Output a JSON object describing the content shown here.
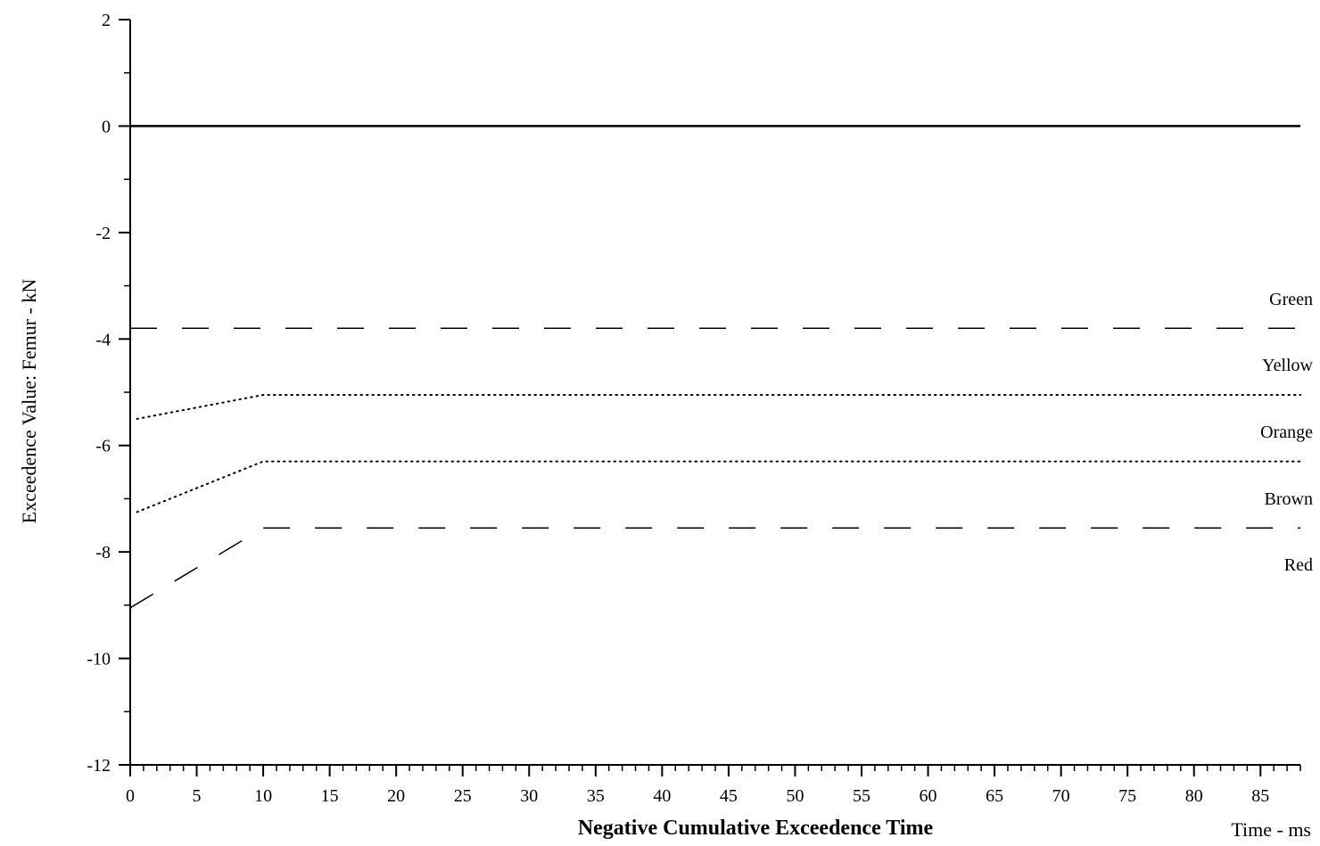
{
  "chart_data": {
    "type": "line",
    "title": "",
    "xlabel": "Negative Cumulative Exceedence Time",
    "xunit": "Time - ms",
    "ylabel": "Exceedence Value: Femur - kN",
    "xlim": [
      0,
      88
    ],
    "ylim": [
      -12,
      2
    ],
    "x_major_ticks": [
      0,
      5,
      10,
      15,
      20,
      25,
      30,
      35,
      40,
      45,
      50,
      55,
      60,
      65,
      70,
      75,
      80,
      85
    ],
    "x_minor_step": 1,
    "y_major_ticks": [
      2,
      0,
      -2,
      -4,
      -6,
      -8,
      -10,
      -12
    ],
    "y_minor_step": 1,
    "grid": false,
    "series": [
      {
        "name": "Green",
        "style": "dashed",
        "points": [
          [
            0,
            -3.8
          ],
          [
            88,
            -3.8
          ]
        ]
      },
      {
        "name": "Yellow",
        "style": "dotted",
        "points": [
          [
            0.5,
            -5.5
          ],
          [
            10,
            -5.05
          ],
          [
            88,
            -5.05
          ]
        ]
      },
      {
        "name": "Orange",
        "style": "dotted",
        "points": [
          [
            0.5,
            -7.25
          ],
          [
            10,
            -6.3
          ],
          [
            88,
            -6.3
          ]
        ]
      },
      {
        "name": "Brown",
        "style": "dashed",
        "points": [
          [
            0,
            -9.05
          ],
          [
            10,
            -7.55
          ],
          [
            88,
            -7.55
          ]
        ]
      },
      {
        "style": "solid",
        "points": [
          [
            0,
            0
          ],
          [
            88,
            0
          ]
        ]
      }
    ],
    "zone_labels": [
      "Green",
      "Yellow",
      "Orange",
      "Brown",
      "Red"
    ]
  }
}
